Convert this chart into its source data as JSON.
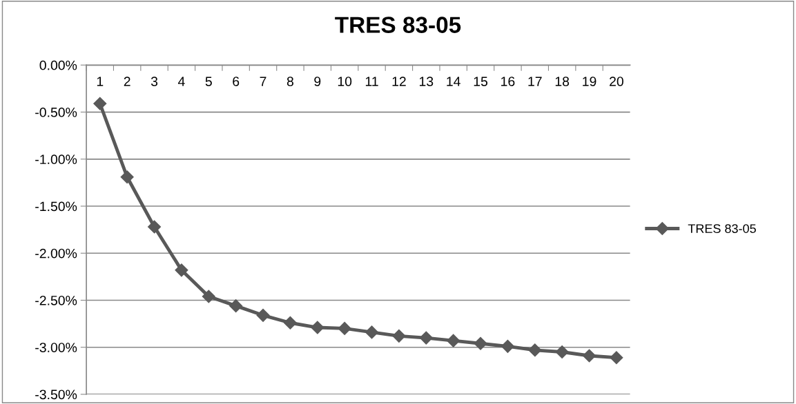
{
  "chart_data": {
    "type": "line",
    "title": "TRES 83-05",
    "categories": [
      "1",
      "2",
      "3",
      "4",
      "5",
      "6",
      "7",
      "8",
      "9",
      "10",
      "11",
      "12",
      "13",
      "14",
      "15",
      "16",
      "17",
      "18",
      "19",
      "20"
    ],
    "series": [
      {
        "name": "TRES 83-05",
        "color": "#595959",
        "values": [
          -0.41,
          -1.19,
          -1.72,
          -2.18,
          -2.46,
          -2.56,
          -2.66,
          -2.74,
          -2.79,
          -2.8,
          -2.84,
          -2.88,
          -2.9,
          -2.93,
          -2.96,
          -2.99,
          -3.03,
          -3.05,
          -3.09,
          -3.11
        ]
      }
    ],
    "ylim": [
      -3.5,
      0
    ],
    "yticks": [
      {
        "value": 0,
        "label": "0.00%"
      },
      {
        "value": -0.5,
        "label": "-0.50%"
      },
      {
        "value": -1,
        "label": "-1.00%"
      },
      {
        "value": -1.5,
        "label": "-1.50%"
      },
      {
        "value": -2,
        "label": "-2.00%"
      },
      {
        "value": -2.5,
        "label": "-2.50%"
      },
      {
        "value": -3,
        "label": "-3.00%"
      },
      {
        "value": -3.5,
        "label": "-3.50%"
      }
    ],
    "grid": "y",
    "legend": "right",
    "marker": "diamond",
    "line_style": "solid"
  }
}
